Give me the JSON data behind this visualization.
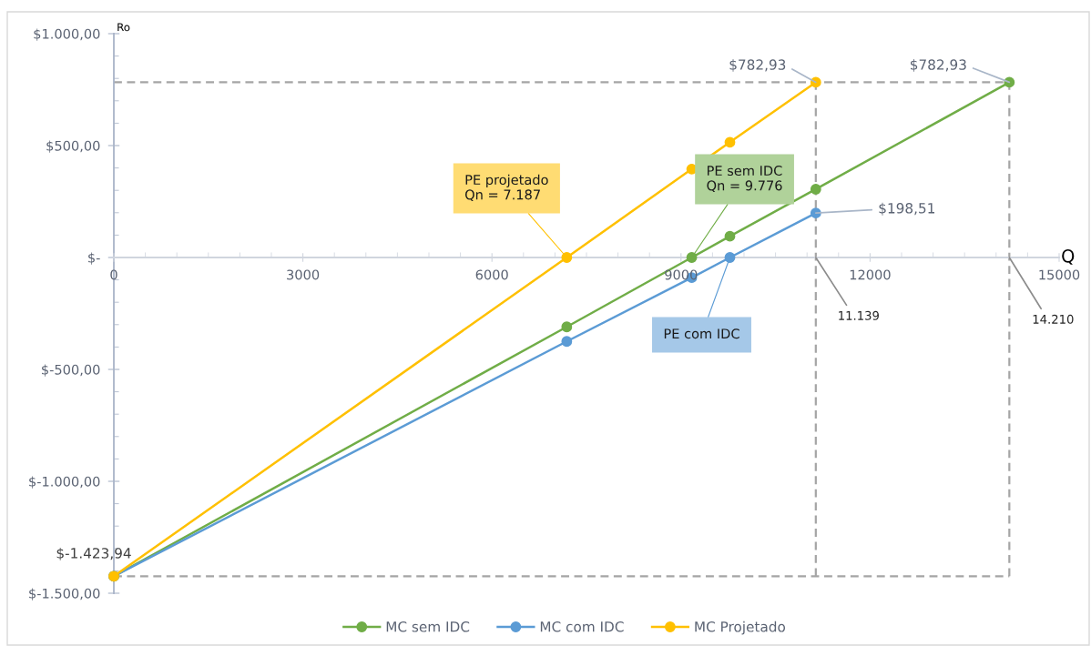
{
  "chart_data": {
    "type": "line",
    "xlabel": "Q",
    "ylabel": "Ro",
    "xlim": [
      0,
      15000
    ],
    "ylim": [
      -1500,
      1000
    ],
    "xticks": [
      0,
      {
        "value": 500,
        "label": null
      },
      {
        "value": 1000,
        "label": null
      },
      {
        "value": 1500,
        "label": null
      },
      {
        "value": 2000,
        "label": null
      },
      {
        "value": 2500,
        "label": null
      },
      3000,
      {
        "value": 3500,
        "label": null
      },
      {
        "value": 4000,
        "label": null
      },
      {
        "value": 4500,
        "label": null
      },
      {
        "value": 5000,
        "label": null
      },
      {
        "value": 5500,
        "label": null
      },
      6000,
      {
        "value": 6500,
        "label": null
      },
      {
        "value": 7000,
        "label": null
      },
      {
        "value": 7500,
        "label": null
      },
      {
        "value": 8000,
        "label": null
      },
      {
        "value": 8500,
        "label": null
      },
      9000,
      {
        "value": 9500,
        "label": null
      },
      {
        "value": 10000,
        "label": null
      },
      {
        "value": 10500,
        "label": null
      },
      {
        "value": 11000,
        "label": null
      },
      {
        "value": 11500,
        "label": null
      },
      12000,
      {
        "value": 12500,
        "label": null
      },
      {
        "value": 13000,
        "label": null
      },
      {
        "value": 13500,
        "label": null
      },
      {
        "value": 14000,
        "label": null
      },
      {
        "value": 14500,
        "label": null
      },
      15000
    ],
    "yticks": [
      {
        "value": -1500,
        "label": "$-1.500,00"
      },
      {
        "value": -1400,
        "label": null
      },
      {
        "value": -1300,
        "label": null
      },
      {
        "value": -1200,
        "label": null
      },
      {
        "value": -1100,
        "label": null
      },
      {
        "value": -1000,
        "label": "$-1.000,00"
      },
      {
        "value": -900,
        "label": null
      },
      {
        "value": -800,
        "label": null
      },
      {
        "value": -700,
        "label": null
      },
      {
        "value": -600,
        "label": null
      },
      {
        "value": -500,
        "label": "$-500,00"
      },
      {
        "value": -400,
        "label": null
      },
      {
        "value": -300,
        "label": null
      },
      {
        "value": -200,
        "label": null
      },
      {
        "value": -100,
        "label": null
      },
      {
        "value": 0,
        "label": "$-"
      },
      {
        "value": 100,
        "label": null
      },
      {
        "value": 200,
        "label": null
      },
      {
        "value": 300,
        "label": null
      },
      {
        "value": 400,
        "label": null
      },
      {
        "value": 500,
        "label": "$500,00"
      },
      {
        "value": 600,
        "label": null
      },
      {
        "value": 700,
        "label": null
      },
      {
        "value": 800,
        "label": null
      },
      {
        "value": 900,
        "label": null
      },
      {
        "value": 1000,
        "label": "$1.000,00"
      }
    ],
    "grid": false,
    "legend": "bottom",
    "marker": "circle",
    "line_style": "solid",
    "series": [
      {
        "name": "MC sem IDC",
        "color": "#70ad47",
        "x": [
          0,
          7187,
          9170,
          9776,
          11139,
          14210
        ],
        "values": [
          -1423.94,
          -310,
          0,
          95,
          305,
          782.93
        ]
      },
      {
        "name": "MC com IDC",
        "color": "#5b9bd5",
        "x": [
          0,
          7187,
          9170,
          9776,
          11139
        ],
        "values": [
          -1423.94,
          -375,
          -90,
          0,
          198.51
        ]
      },
      {
        "name": "MC Projetado",
        "color": "#ffc000",
        "x": [
          0,
          7187,
          9170,
          9776,
          11139
        ],
        "values": [
          -1423.94,
          0,
          395,
          515,
          782.93
        ]
      }
    ],
    "ref_lines": [
      {
        "axis": "y",
        "value": 782.93,
        "color": "#a5a5a5",
        "line_style": "dashed"
      },
      {
        "axis": "y",
        "value": -1423.94,
        "color": "#a5a5a5",
        "line_style": "dashed"
      },
      {
        "axis": "x",
        "value": 11139,
        "color": "#a5a5a5",
        "line_style": "dashed"
      },
      {
        "axis": "x",
        "value": 14210,
        "color": "#a5a5a5",
        "line_style": "dashed"
      }
    ],
    "annotations": [
      {
        "text": "PE projetado\nQn = 7.187",
        "x": 7187,
        "y": 0
      },
      {
        "text": "PE sem IDC\nQn = 9.776",
        "x": 9170,
        "y": 0
      },
      {
        "text": "PE com IDC",
        "x": 9776,
        "y": 0
      },
      {
        "text": "$782,93",
        "x": 11139,
        "y": 782.93
      },
      {
        "text": "$782,93",
        "x": 14210,
        "y": 782.93
      },
      {
        "text": "$198,51",
        "x": 11139,
        "y": 198.51
      },
      {
        "text": "$-1.423,94",
        "x": 0,
        "y": -1423.94
      },
      {
        "text": "11.139",
        "x": 11139,
        "y": 0
      },
      {
        "text": "14.210",
        "x": 14210,
        "y": 0
      }
    ]
  }
}
